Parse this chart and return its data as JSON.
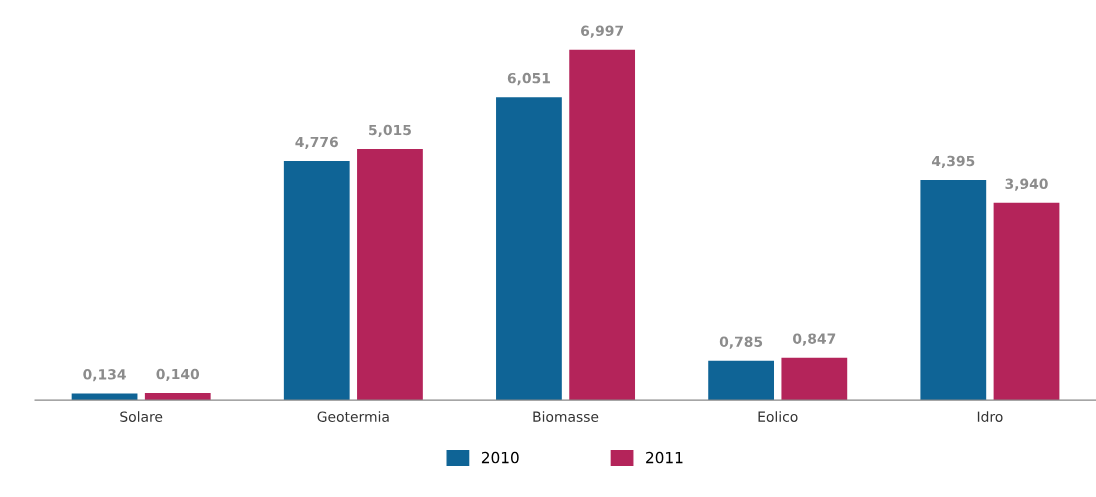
{
  "chart_data": {
    "type": "bar",
    "categories": [
      "Solare",
      "Geotermia",
      "Biomasse",
      "Eolico",
      "Idro"
    ],
    "series": [
      {
        "name": "2010",
        "color": "#0f6496",
        "values": [
          0.134,
          4.776,
          6.051,
          0.785,
          4.395
        ],
        "value_labels": [
          "0,134",
          "4,776",
          "6,051",
          "0,785",
          "4,395"
        ]
      },
      {
        "name": "2011",
        "color": "#b4245a",
        "values": [
          0.14,
          5.015,
          6.997,
          0.847,
          3.94
        ],
        "value_labels": [
          "0,140",
          "5,015",
          "6,997",
          "0,847",
          "3,940"
        ]
      }
    ],
    "legend": "bottom",
    "grid": false
  }
}
